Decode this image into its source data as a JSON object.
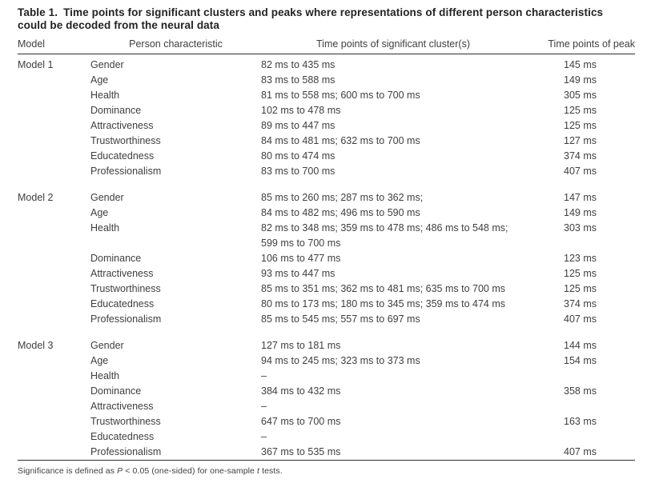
{
  "table": {
    "title_label": "Table 1.",
    "title_lines": [
      "Time points for significant clusters and peaks where representations of different person characteristics",
      "could be decoded from the neural data"
    ],
    "columns": [
      "Model",
      "Person characteristic",
      "Time points of significant cluster(s)",
      "Time points of peak"
    ],
    "groups": [
      {
        "model": "Model 1",
        "rows": [
          {
            "characteristic": "Gender",
            "clusters": "82 ms to 435 ms",
            "peak": "145 ms"
          },
          {
            "characteristic": "Age",
            "clusters": "83 ms to 588 ms",
            "peak": "149 ms"
          },
          {
            "characteristic": "Health",
            "clusters": "81 ms to 558 ms; 600 ms to 700 ms",
            "peak": "305 ms"
          },
          {
            "characteristic": "Dominance",
            "clusters": "102 ms to 478 ms",
            "peak": "125 ms"
          },
          {
            "characteristic": "Attractiveness",
            "clusters": "89 ms to 447 ms",
            "peak": "125 ms"
          },
          {
            "characteristic": "Trustworthiness",
            "clusters": "84 ms to 481 ms; 632 ms to 700 ms",
            "peak": "127 ms"
          },
          {
            "characteristic": "Educatedness",
            "clusters": "80 ms to 474 ms",
            "peak": "374 ms"
          },
          {
            "characteristic": "Professionalism",
            "clusters": "83 ms to 700 ms",
            "peak": "407 ms"
          }
        ]
      },
      {
        "model": "Model 2",
        "rows": [
          {
            "characteristic": "Gender",
            "clusters": "85 ms to 260 ms; 287 ms to 362 ms;",
            "peak": "147 ms"
          },
          {
            "characteristic": "Age",
            "clusters": "84 ms to 482 ms; 496 ms to 590 ms",
            "peak": "149 ms"
          },
          {
            "characteristic": "Health",
            "clusters": "82 ms to 348 ms; 359 ms to 478 ms; 486 ms to 548 ms; 599 ms to 700 ms",
            "peak": "303 ms"
          },
          {
            "characteristic": "Dominance",
            "clusters": "106 ms to 477 ms",
            "peak": "123 ms"
          },
          {
            "characteristic": "Attractiveness",
            "clusters": "93 ms to 447 ms",
            "peak": "125 ms"
          },
          {
            "characteristic": "Trustworthiness",
            "clusters": "85 ms to 351 ms; 362 ms to 481 ms; 635 ms to 700 ms",
            "peak": "125 ms"
          },
          {
            "characteristic": "Educatedness",
            "clusters": "80 ms to 173 ms; 180 ms to 345 ms; 359 ms to 474 ms",
            "peak": "374 ms"
          },
          {
            "characteristic": "Professionalism",
            "clusters": "85 ms to 545 ms; 557 ms to 697 ms",
            "peak": "407 ms"
          }
        ]
      },
      {
        "model": "Model 3",
        "rows": [
          {
            "characteristic": "Gender",
            "clusters": "127 ms to 181 ms",
            "peak": "144 ms"
          },
          {
            "characteristic": "Age",
            "clusters": "94 ms to 245 ms; 323 ms to 373 ms",
            "peak": "154 ms"
          },
          {
            "characteristic": "Health",
            "clusters": "–",
            "peak": ""
          },
          {
            "characteristic": "Dominance",
            "clusters": "384 ms to 432 ms",
            "peak": "358 ms"
          },
          {
            "characteristic": "Attractiveness",
            "clusters": "–",
            "peak": ""
          },
          {
            "characteristic": "Trustworthiness",
            "clusters": "647 ms to 700 ms",
            "peak": "163 ms"
          },
          {
            "characteristic": "Educatedness",
            "clusters": "–",
            "peak": ""
          },
          {
            "characteristic": "Professionalism",
            "clusters": "367 ms to 535 ms",
            "peak": "407 ms"
          }
        ]
      }
    ],
    "footnote": [
      {
        "text": "Significance is defined as ",
        "italic": false
      },
      {
        "text": "P",
        "italic": true
      },
      {
        "text": " < 0.05 (one-sided) for one-sample ",
        "italic": false
      },
      {
        "text": "t",
        "italic": true
      },
      {
        "text": " tests.",
        "italic": false
      }
    ],
    "colors": {
      "background": "#ffffff",
      "text": "#3f3f3f",
      "title": "#232323",
      "rule": "#2f2f2f"
    }
  }
}
